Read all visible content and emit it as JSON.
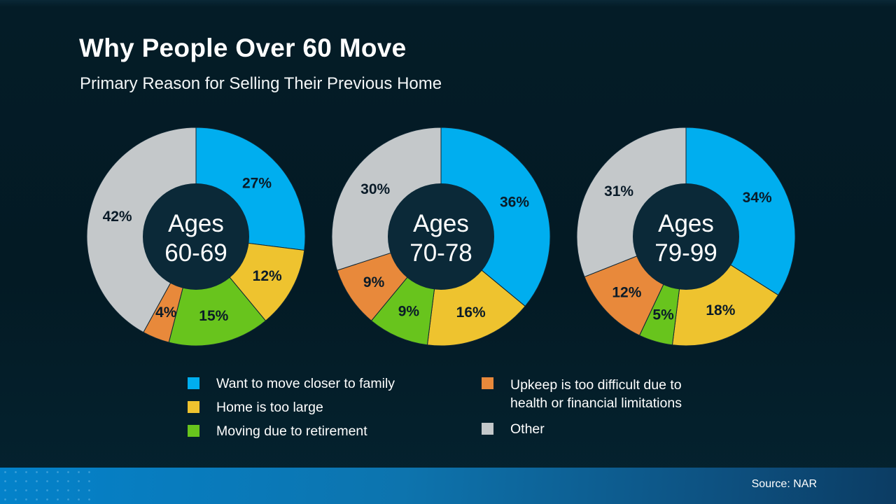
{
  "header": {
    "title": "Why People Over 60 Move",
    "subtitle": "Primary Reason for Selling Their Previous Home"
  },
  "chart_data": {
    "type": "pie",
    "subtype": "donut",
    "unit": "%",
    "direction": "clockwise",
    "start_angle_deg": 0,
    "categories": [
      "Want to move closer to family",
      "Home is too large",
      "Moving due to retirement",
      "Upkeep is too difficult due to health or financial limitations",
      "Other"
    ],
    "palette": [
      "#00AEEF",
      "#EEC32F",
      "#68C41D",
      "#E8893B",
      "#C4C8CA"
    ],
    "hole_color": "#0B2938",
    "slice_label_color": "#0A1B28",
    "center_text_color": "#FFFFFF",
    "charts": [
      {
        "center_label": [
          "Ages",
          "60-69"
        ],
        "values": [
          27,
          12,
          15,
          4,
          42
        ]
      },
      {
        "center_label": [
          "Ages",
          "70-78"
        ],
        "values": [
          36,
          16,
          9,
          9,
          30
        ]
      },
      {
        "center_label": [
          "Ages",
          "79-99"
        ],
        "values": [
          34,
          18,
          5,
          12,
          31
        ]
      }
    ]
  },
  "legend": {
    "items": [
      {
        "label": "Want to move closer to family",
        "color": "#00AEEF"
      },
      {
        "label": "Home is too large",
        "color": "#EEC32F"
      },
      {
        "label": "Moving due to retirement",
        "color": "#68C41D"
      },
      {
        "label": "Upkeep is too difficult due to health or financial limitations",
        "color": "#E8893B"
      },
      {
        "label": "Other",
        "color": "#C4C8CA"
      }
    ]
  },
  "footer": {
    "source": "Source: NAR"
  }
}
